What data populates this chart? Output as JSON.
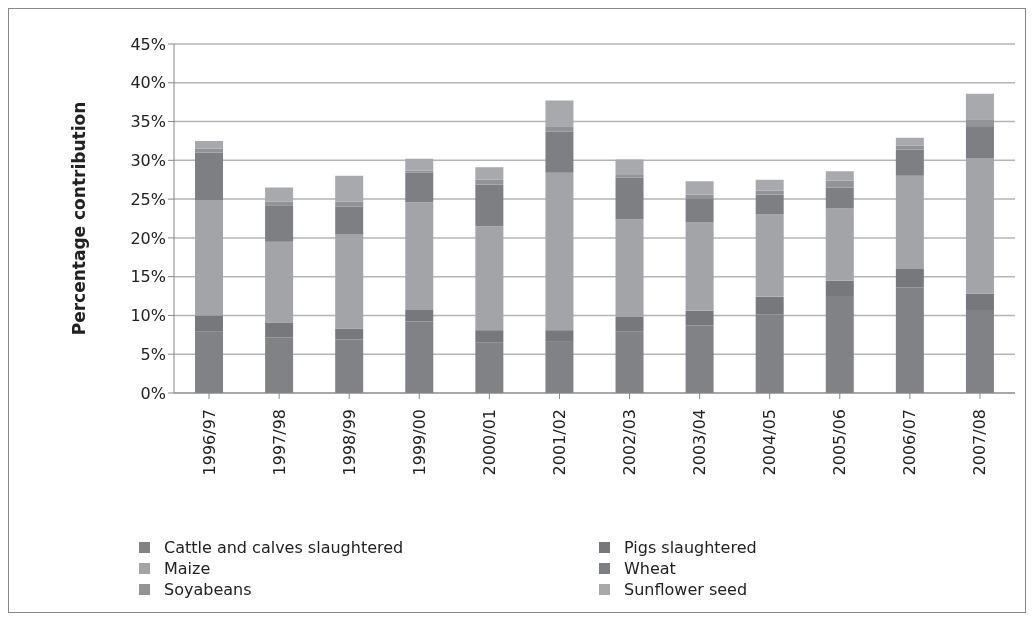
{
  "chart_data": {
    "type": "bar",
    "stacked": true,
    "ylabel": "Percentage contribution",
    "categories": [
      "1996/97",
      "1997/98",
      "1998/99",
      "1999/00",
      "2000/01",
      "2001/02",
      "2002/03",
      "2003/04",
      "2004/05",
      "2005/06",
      "2006/07",
      "2007/08"
    ],
    "series": [
      {
        "name": "Cattle and calves slaughtered",
        "color": "#818285",
        "values": [
          7.9,
          7.2,
          6.9,
          9.2,
          6.5,
          6.6,
          7.9,
          8.7,
          10.1,
          12.5,
          13.6,
          10.7
        ]
      },
      {
        "name": "Pigs slaughtered",
        "color": "#77787b",
        "values": [
          2.1,
          1.9,
          1.4,
          1.5,
          1.6,
          1.5,
          1.9,
          1.9,
          2.3,
          2.0,
          2.4,
          2.1
        ]
      },
      {
        "name": "Maize",
        "color": "#a3a4a7",
        "values": [
          14.9,
          10.4,
          12.2,
          13.9,
          13.4,
          20.3,
          12.6,
          11.4,
          10.6,
          9.3,
          12.0,
          17.5
        ]
      },
      {
        "name": "Wheat",
        "color": "#7e7f82",
        "values": [
          6.1,
          4.7,
          3.5,
          3.8,
          5.4,
          5.3,
          5.4,
          3.0,
          2.6,
          2.7,
          3.4,
          4.0
        ]
      },
      {
        "name": "Soyabeans",
        "color": "#929396",
        "values": [
          0.5,
          0.5,
          0.7,
          0.3,
          0.6,
          0.7,
          0.3,
          0.6,
          0.5,
          0.9,
          0.5,
          1.0
        ]
      },
      {
        "name": "Sunflower seed",
        "color": "#a8a9ac",
        "values": [
          1.0,
          1.8,
          3.3,
          1.5,
          1.6,
          3.3,
          2.0,
          1.7,
          1.4,
          1.2,
          1.0,
          3.3
        ]
      }
    ],
    "ylim": [
      0,
      45
    ],
    "yticks": [
      {
        "value": 0,
        "label": "0%"
      },
      {
        "value": 5,
        "label": "5%"
      },
      {
        "value": 10,
        "label": "10%"
      },
      {
        "value": 15,
        "label": "15%"
      },
      {
        "value": 20,
        "label": "20%"
      },
      {
        "value": 25,
        "label": "25%"
      },
      {
        "value": 30,
        "label": "30%"
      },
      {
        "value": 35,
        "label": "35%"
      },
      {
        "value": 40,
        "label": "40%"
      },
      {
        "value": 45,
        "label": "45%"
      }
    ],
    "grid": "y",
    "legend": "bottom"
  }
}
